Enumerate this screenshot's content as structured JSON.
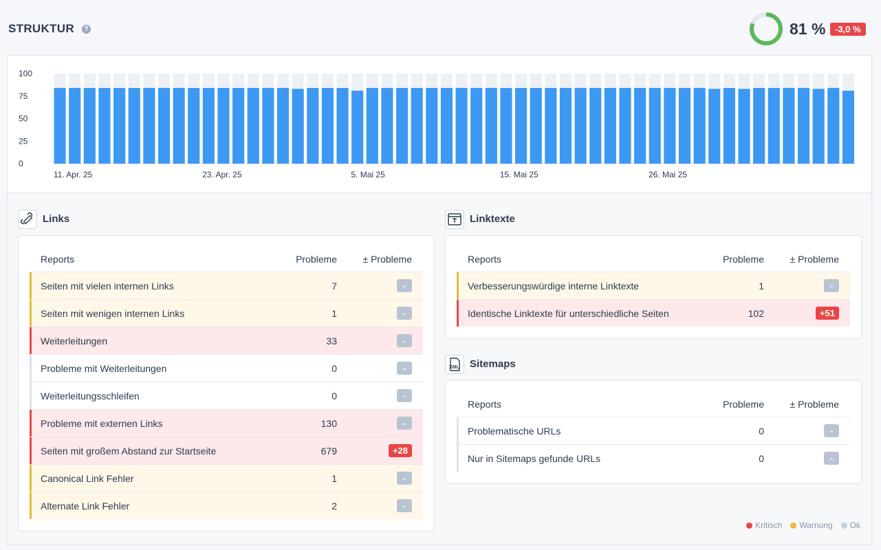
{
  "header": {
    "title": "STRUKTUR",
    "help_glyph": "?",
    "score": "81 %",
    "score_value": 81,
    "delta": "-3,0 %",
    "donut_colors": {
      "fill": "#5cb85c",
      "track": "#e3e8ee"
    }
  },
  "chart_data": {
    "type": "bar",
    "yticks": [
      "100",
      "75",
      "50",
      "25",
      "0"
    ],
    "ylim": [
      0,
      100
    ],
    "xtick_labels": [
      "11. Apr. 25",
      "23. Apr. 25",
      "5. Mai 25",
      "15. Mai 25",
      "26. Mai 25"
    ],
    "values": [
      84,
      84,
      84,
      84,
      84,
      84,
      84,
      84,
      84,
      84,
      84,
      84,
      84,
      84,
      84,
      84,
      83,
      84,
      84,
      84,
      81,
      84,
      84,
      84,
      84,
      84,
      84,
      84,
      84,
      84,
      84,
      84,
      84,
      84,
      84,
      84,
      84,
      84,
      84,
      84,
      84,
      84,
      84,
      84,
      83,
      84,
      83,
      84,
      84,
      84,
      84,
      83,
      84,
      81
    ],
    "max_value": 100,
    "colors": {
      "bar": "#3d98f4",
      "track": "#edf1f5"
    }
  },
  "links": {
    "title": "Links",
    "icon": "link-icon",
    "columns": [
      "Reports",
      "Probleme",
      "± Probleme"
    ],
    "rows": [
      {
        "label": "Seiten mit vielen internen Links",
        "count": "7",
        "delta": "-",
        "status": "warn"
      },
      {
        "label": "Seiten mit wenigen internen Links",
        "count": "1",
        "delta": "-",
        "status": "warn"
      },
      {
        "label": "Weiterleitungen",
        "count": "33",
        "delta": "-",
        "status": "crit"
      },
      {
        "label": "Probleme mit Weiterleitungen",
        "count": "0",
        "delta": "-",
        "status": "ok"
      },
      {
        "label": "Weiterleitungsschleifen",
        "count": "0",
        "delta": "-",
        "status": "ok"
      },
      {
        "label": "Probleme mit externen Links",
        "count": "130",
        "delta": "-",
        "status": "crit"
      },
      {
        "label": "Seiten mit großem Abstand zur Startseite",
        "count": "679",
        "delta": "+28",
        "status": "crit"
      },
      {
        "label": "Canonical Link Fehler",
        "count": "1",
        "delta": "-",
        "status": "warn"
      },
      {
        "label": "Alternate Link Fehler",
        "count": "2",
        "delta": "-",
        "status": "warn"
      }
    ]
  },
  "linktexte": {
    "title": "Linktexte",
    "icon": "text-field-icon",
    "columns": [
      "Reports",
      "Probleme",
      "± Probleme"
    ],
    "rows": [
      {
        "label": "Verbesserungswürdige interne Linktexte",
        "count": "1",
        "delta": "-",
        "status": "warn"
      },
      {
        "label": "Identische Linktexte für unterschiedliche Seiten",
        "count": "102",
        "delta": "+51",
        "status": "crit"
      }
    ]
  },
  "sitemaps": {
    "title": "Sitemaps",
    "icon": "xml-file-icon",
    "columns": [
      "Reports",
      "Probleme",
      "± Probleme"
    ],
    "rows": [
      {
        "label": "Problematische URLs",
        "count": "0",
        "delta": "-",
        "status": "ok"
      },
      {
        "label": "Nur in Sitemaps gefunde URLs",
        "count": "0",
        "delta": "-",
        "status": "ok"
      }
    ]
  },
  "legend": {
    "critical": "Kritisch",
    "warning": "Warnung",
    "ok": "Ok",
    "colors": {
      "critical": "#e84646",
      "warning": "#e9b93a",
      "ok": "#b8c4d2"
    }
  }
}
